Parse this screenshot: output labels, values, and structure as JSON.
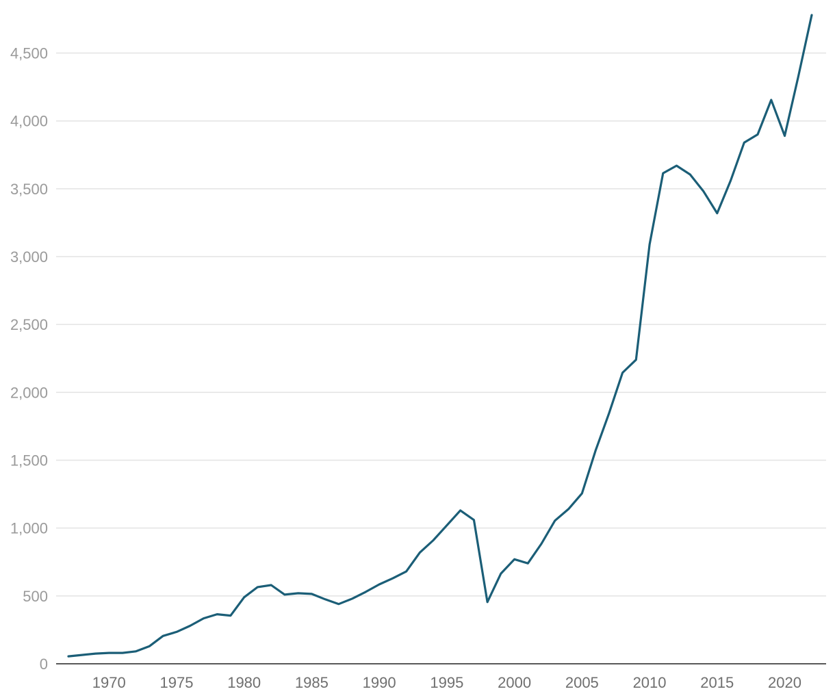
{
  "chart_data": {
    "type": "line",
    "title": "",
    "xlabel": "",
    "ylabel": "",
    "xlim": [
      1967,
      2022
    ],
    "ylim": [
      0,
      4780
    ],
    "grid": true,
    "legend": "none",
    "x_ticks": [
      "1970",
      "1975",
      "1980",
      "1985",
      "1990",
      "1995",
      "2000",
      "2005",
      "2010",
      "2015",
      "2020"
    ],
    "y_ticks": [
      "0",
      "500",
      "1,000",
      "1,500",
      "2,000",
      "2,500",
      "3,000",
      "3,500",
      "4,000",
      "4,500"
    ],
    "x_tick_values": [
      1970,
      1975,
      1980,
      1985,
      1990,
      1995,
      2000,
      2005,
      2010,
      2015,
      2020
    ],
    "y_tick_values": [
      0,
      500,
      1000,
      1500,
      2000,
      2500,
      3000,
      3500,
      4000,
      4500
    ],
    "series": [
      {
        "color": "#1b5e77",
        "x": [
          1967,
          1968,
          1969,
          1970,
          1971,
          1972,
          1973,
          1974,
          1975,
          1976,
          1977,
          1978,
          1979,
          1980,
          1981,
          1982,
          1983,
          1984,
          1985,
          1986,
          1987,
          1988,
          1989,
          1990,
          1991,
          1992,
          1993,
          1994,
          1995,
          1996,
          1997,
          1998,
          1999,
          2000,
          2001,
          2002,
          2003,
          2004,
          2005,
          2006,
          2007,
          2008,
          2009,
          2010,
          2011,
          2012,
          2013,
          2014,
          2015,
          2016,
          2017,
          2018,
          2019,
          2020,
          2021,
          2022
        ],
        "values": [
          55,
          65,
          75,
          80,
          80,
          92,
          130,
          205,
          235,
          280,
          335,
          365,
          355,
          490,
          565,
          580,
          510,
          520,
          515,
          475,
          440,
          480,
          530,
          585,
          630,
          680,
          820,
          910,
          1020,
          1130,
          1060,
          455,
          665,
          770,
          740,
          885,
          1055,
          1140,
          1255,
          1570,
          1845,
          2145,
          2240,
          3090,
          3615,
          3670,
          3605,
          3480,
          3320,
          3560,
          3840,
          3900,
          4155,
          3890,
          4325,
          4780
        ]
      }
    ]
  }
}
